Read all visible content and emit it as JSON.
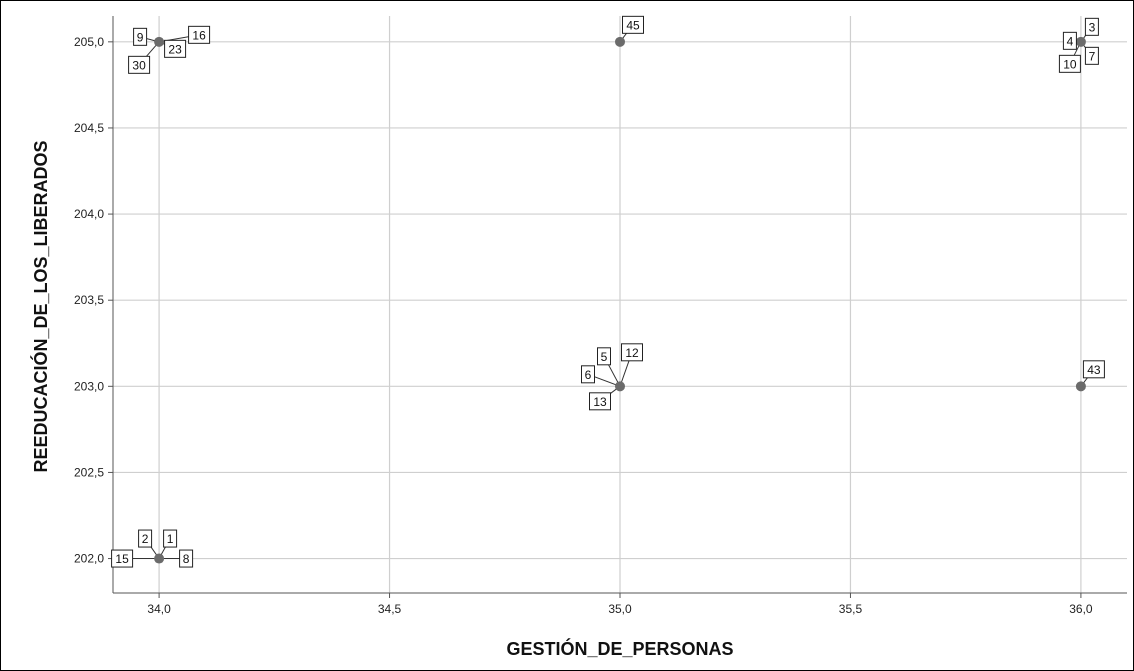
{
  "chart_data": {
    "type": "scatter",
    "xlabel": "GESTIÓN_DE_PERSONAS",
    "ylabel": "REEDUCACIÓN_DE_LOS_LIBERADOS",
    "xlim": [
      33.9,
      36.1
    ],
    "ylim": [
      201.8,
      205.15
    ],
    "x_ticks": [
      34.0,
      34.5,
      35.0,
      35.5,
      36.0
    ],
    "x_tick_labels": [
      "34,0",
      "34,5",
      "35,0",
      "35,5",
      "36,0"
    ],
    "y_ticks": [
      202.0,
      202.5,
      203.0,
      203.5,
      204.0,
      204.5,
      205.0
    ],
    "y_tick_labels": [
      "202,0",
      "202,5",
      "203,0",
      "203,5",
      "204,0",
      "204,5",
      "205,0"
    ],
    "grid": true,
    "point_color": "#6b6b6b",
    "grid_color": "#cfcfcf",
    "points": [
      {
        "x": 34.0,
        "y": 205.0,
        "labels": [
          {
            "text": "9",
            "dx": -19,
            "dy": -5
          },
          {
            "text": "16",
            "dx": 40,
            "dy": -7
          },
          {
            "text": "23",
            "dx": 16,
            "dy": 7
          },
          {
            "text": "30",
            "dx": -20,
            "dy": 23
          }
        ]
      },
      {
        "x": 35.0,
        "y": 205.0,
        "labels": [
          {
            "text": "45",
            "dx": 13,
            "dy": -17
          }
        ]
      },
      {
        "x": 36.0,
        "y": 205.0,
        "labels": [
          {
            "text": "3",
            "dx": 11,
            "dy": -15
          },
          {
            "text": "4",
            "dx": -11,
            "dy": -1
          },
          {
            "text": "7",
            "dx": 11,
            "dy": 14
          },
          {
            "text": "10",
            "dx": -11,
            "dy": 22
          }
        ]
      },
      {
        "x": 35.0,
        "y": 203.0,
        "labels": [
          {
            "text": "5",
            "dx": -16,
            "dy": -30
          },
          {
            "text": "12",
            "dx": 12,
            "dy": -34
          },
          {
            "text": "6",
            "dx": -32,
            "dy": -12
          },
          {
            "text": "13",
            "dx": -20,
            "dy": 15
          }
        ]
      },
      {
        "x": 36.0,
        "y": 203.0,
        "labels": [
          {
            "text": "43",
            "dx": 13,
            "dy": -17
          }
        ]
      },
      {
        "x": 34.0,
        "y": 202.0,
        "labels": [
          {
            "text": "2",
            "dx": -14,
            "dy": -20
          },
          {
            "text": "1",
            "dx": 11,
            "dy": -20
          },
          {
            "text": "15",
            "dx": -37,
            "dy": 0
          },
          {
            "text": "8",
            "dx": 27,
            "dy": 0
          }
        ]
      }
    ]
  }
}
